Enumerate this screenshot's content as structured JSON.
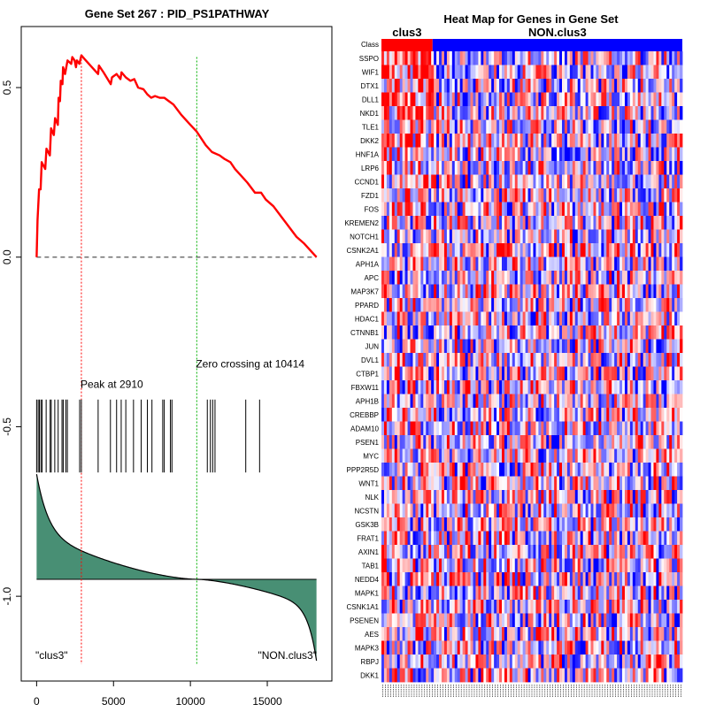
{
  "chart_data": [
    {
      "type": "line",
      "title": "Gene Set  267 : PID_PS1PATHWAY",
      "xlabel": "",
      "ylabel": "",
      "xlim": [
        -1000,
        19200
      ],
      "ylim": [
        -1.25,
        0.68
      ],
      "x_ticks": [
        0,
        5000,
        10000,
        15000
      ],
      "x_tick_labels": [
        "0",
        "5000",
        "10000",
        "15000"
      ],
      "y_ticks": [
        0.5,
        0.0,
        -0.5,
        -1.0
      ],
      "y_tick_labels": [
        "0.5",
        "0.0",
        "-0.5",
        "-1.0"
      ],
      "total_genes": 18200,
      "series": [
        {
          "name": "Running enrichment score",
          "color": "#ff0000",
          "points": [
            [
              0,
              0.0
            ],
            [
              60,
              0.11
            ],
            [
              160,
              0.2
            ],
            [
              260,
              0.2
            ],
            [
              330,
              0.28
            ],
            [
              560,
              0.26
            ],
            [
              640,
              0.32
            ],
            [
              860,
              0.3
            ],
            [
              940,
              0.38
            ],
            [
              1120,
              0.36
            ],
            [
              1200,
              0.41
            ],
            [
              1380,
              0.39
            ],
            [
              1430,
              0.47
            ],
            [
              1520,
              0.46
            ],
            [
              1570,
              0.52
            ],
            [
              1680,
              0.51
            ],
            [
              1720,
              0.56
            ],
            [
              1850,
              0.54
            ],
            [
              2010,
              0.58
            ],
            [
              2250,
              0.57
            ],
            [
              2320,
              0.59
            ],
            [
              2470,
              0.58
            ],
            [
              2560,
              0.56
            ],
            [
              2620,
              0.58
            ],
            [
              2780,
              0.57
            ],
            [
              2910,
              0.595
            ],
            [
              3100,
              0.585
            ],
            [
              3600,
              0.56
            ],
            [
              4000,
              0.54
            ],
            [
              4050,
              0.565
            ],
            [
              4350,
              0.545
            ],
            [
              4820,
              0.51
            ],
            [
              4900,
              0.53
            ],
            [
              5200,
              0.54
            ],
            [
              5450,
              0.525
            ],
            [
              5520,
              0.545
            ],
            [
              5800,
              0.53
            ],
            [
              6100,
              0.52
            ],
            [
              6350,
              0.525
            ],
            [
              6600,
              0.5
            ],
            [
              6950,
              0.495
            ],
            [
              7200,
              0.48
            ],
            [
              7450,
              0.47
            ],
            [
              7700,
              0.475
            ],
            [
              8000,
              0.47
            ],
            [
              8300,
              0.47
            ],
            [
              8600,
              0.46
            ],
            [
              8900,
              0.45
            ],
            [
              9400,
              0.42
            ],
            [
              10000,
              0.39
            ],
            [
              10414,
              0.37
            ],
            [
              11000,
              0.33
            ],
            [
              11400,
              0.31
            ],
            [
              11900,
              0.3
            ],
            [
              12200,
              0.29
            ],
            [
              12600,
              0.28
            ],
            [
              12900,
              0.26
            ],
            [
              13300,
              0.24
            ],
            [
              13700,
              0.22
            ],
            [
              14200,
              0.19
            ],
            [
              14600,
              0.19
            ],
            [
              14900,
              0.17
            ],
            [
              15400,
              0.15
            ],
            [
              15900,
              0.12
            ],
            [
              16400,
              0.09
            ],
            [
              16900,
              0.06
            ],
            [
              17400,
              0.04
            ],
            [
              17800,
              0.02
            ],
            [
              18200,
              0.0
            ]
          ]
        }
      ],
      "baseline": 0.0,
      "peak_x": 2910,
      "zero_crossing_x": 10414,
      "annotations": {
        "peak": "Peak at 2910",
        "zero_crossing": "Zero crossing at 10414",
        "left_class": "\"clus3\"",
        "right_class": "\"NON.clus3\""
      },
      "hit_positions": [
        0,
        100,
        180,
        280,
        360,
        620,
        880,
        950,
        1180,
        1400,
        1650,
        1730,
        1900,
        2000,
        2800,
        2910,
        4000,
        4800,
        5200,
        5500,
        5800,
        6300,
        6800,
        7200,
        7500,
        8200,
        8300,
        8700,
        8800,
        11100,
        11300,
        11450,
        11600,
        13600,
        14500
      ],
      "hit_band": [
        -0.42,
        -0.635
      ],
      "ranked_metric": {
        "color": "#488f74",
        "baseline": -0.95,
        "start_value": -0.64,
        "end_value": -1.19,
        "crossing_x": 10414
      },
      "line_colors": {
        "peak": "#ff0000",
        "zero_crossing": "#00b000",
        "baseline": "#555555"
      }
    },
    {
      "type": "heatmap",
      "title": "Heat Map for Genes in Gene Set",
      "class_labels": [
        "clus3",
        "NON.clus3"
      ],
      "class_colors": [
        "#ff0000",
        "#0000ff"
      ],
      "class_row_label": "Class",
      "class_split_fraction": 0.17,
      "genes": [
        "SSPO",
        "WIF1",
        "DTX1",
        "DLL1",
        "NKD1",
        "TLE1",
        "DKK2",
        "HNF1A",
        "LRP6",
        "CCND1",
        "FZD1",
        "FOS",
        "KREMEN2",
        "NOTCH1",
        "CSNK2A1",
        "APH1A",
        "APC",
        "MAP3K7",
        "PPARD",
        "HDAC1",
        "CTNNB1",
        "JUN",
        "DVL1",
        "CTBP1",
        "FBXW11",
        "APH1B",
        "CREBBP",
        "ADAM10",
        "PSEN1",
        "MYC",
        "PPP2R5D",
        "WNT1",
        "NLK",
        "NCSTN",
        "GSK3B",
        "FRAT1",
        "AXIN1",
        "TAB1",
        "NEDD4",
        "MAPK1",
        "CSNK1A1",
        "PSENEN",
        "AES",
        "MAPK3",
        "RBPJ",
        "DKK1"
      ],
      "n_samples": 115,
      "color_low": "#0000ff",
      "color_mid": "#ffffff",
      "color_high": "#ff0000"
    }
  ]
}
